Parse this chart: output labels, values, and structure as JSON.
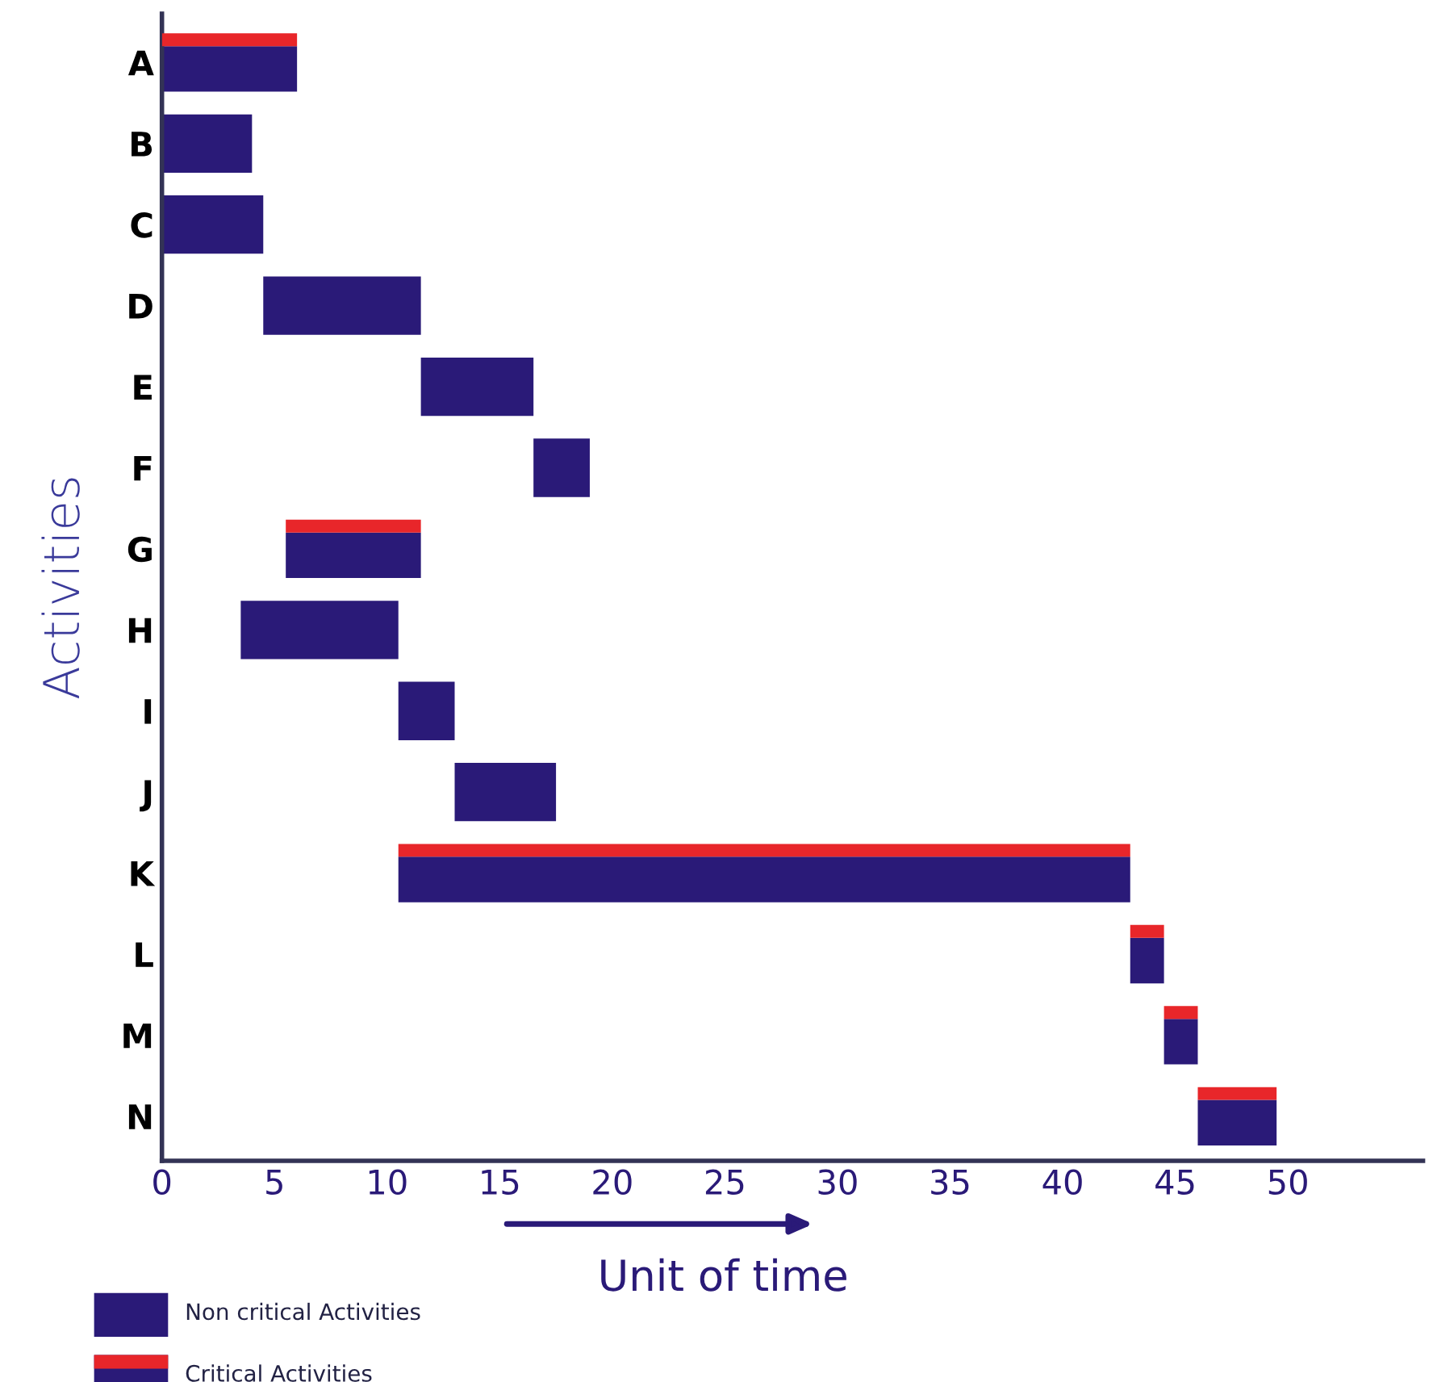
{
  "chart_data": {
    "type": "bar",
    "orientation": "horizontal",
    "categories": [
      "A",
      "B",
      "C",
      "D",
      "E",
      "F",
      "G",
      "H",
      "I",
      "J",
      "K",
      "L",
      "M",
      "N"
    ],
    "series": [
      {
        "name": "Non critical Activities",
        "color": "#2a1a78",
        "base": [
          null,
          0,
          0,
          4.5,
          11.5,
          16.5,
          null,
          3.5,
          10.5,
          13,
          null,
          null,
          null,
          null
        ],
        "values": [
          null,
          4,
          4.5,
          7,
          5,
          2.5,
          null,
          7,
          2.5,
          4.5,
          null,
          null,
          null,
          null
        ]
      },
      {
        "name": "Critical Activities",
        "color": "#2a1a78",
        "base": [
          0,
          null,
          null,
          null,
          null,
          null,
          5.5,
          null,
          null,
          null,
          10.5,
          43,
          44.5,
          46
        ],
        "values": [
          6,
          null,
          null,
          null,
          null,
          null,
          6,
          null,
          null,
          null,
          32.5,
          1.5,
          1.5,
          3.5
        ]
      },
      {
        "color": "#e8262a",
        "base": [
          0,
          null,
          null,
          null,
          null,
          null,
          5.5,
          null,
          null,
          null,
          10.5,
          43,
          44.5,
          46
        ],
        "values": [
          6,
          null,
          null,
          null,
          null,
          null,
          6,
          null,
          null,
          null,
          32.5,
          1.5,
          1.5,
          3.5
        ]
      }
    ],
    "ylabel": "Activities",
    "xlabel": "Unit of time",
    "xlim": [
      0,
      56
    ],
    "xticks": [
      0,
      5,
      10,
      15,
      20,
      25,
      30,
      35,
      40,
      45,
      50
    ],
    "grid": false,
    "legend": "bottom left"
  }
}
